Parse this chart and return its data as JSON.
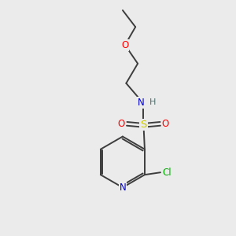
{
  "background_color": "#ebebeb",
  "bond_color": "#3d3d3d",
  "atom_colors": {
    "O": "#ff0000",
    "N_amine": "#0000cc",
    "N_pyridine": "#0000cc",
    "S": "#cccc00",
    "Cl": "#00aa00",
    "H": "#507070",
    "C": "#3d3d3d"
  },
  "figsize": [
    3.0,
    3.0
  ],
  "dpi": 100,
  "lw": 1.4,
  "font_size": 8.5
}
